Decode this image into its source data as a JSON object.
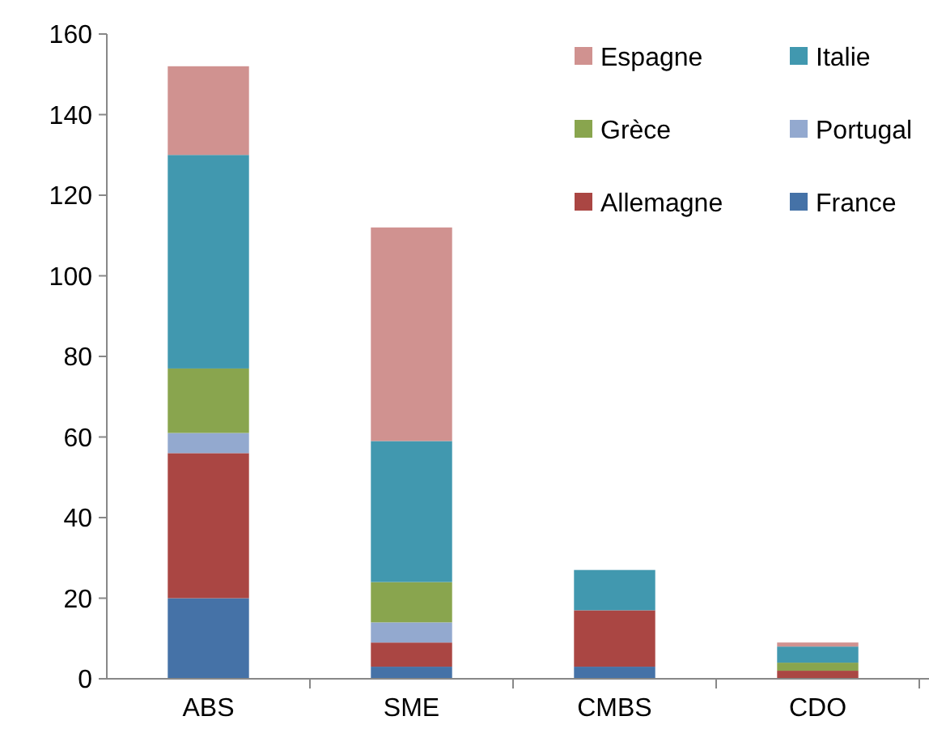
{
  "chart_data": {
    "type": "bar",
    "stacked": true,
    "categories": [
      "ABS",
      "SME",
      "CMBS",
      "CDO"
    ],
    "ylim": [
      0,
      160
    ],
    "yticks": [
      0,
      20,
      40,
      60,
      80,
      100,
      120,
      140,
      160
    ],
    "grid": false,
    "legend": "top right",
    "series": [
      {
        "name": "France",
        "color": "#4572a7",
        "values": [
          20,
          3,
          3,
          0
        ]
      },
      {
        "name": "Allemagne",
        "color": "#aa4643",
        "values": [
          36,
          6,
          14,
          2
        ]
      },
      {
        "name": "Portugal",
        "color": "#93a9cf",
        "values": [
          5,
          5,
          0,
          0
        ]
      },
      {
        "name": "Grèce",
        "color": "#89a54e",
        "values": [
          16,
          10,
          0,
          2
        ]
      },
      {
        "name": "Italie",
        "color": "#4198af",
        "values": [
          53,
          35,
          10,
          4
        ]
      },
      {
        "name": "Espagne",
        "color": "#d09290",
        "values": [
          22,
          53,
          0,
          1
        ]
      }
    ]
  }
}
